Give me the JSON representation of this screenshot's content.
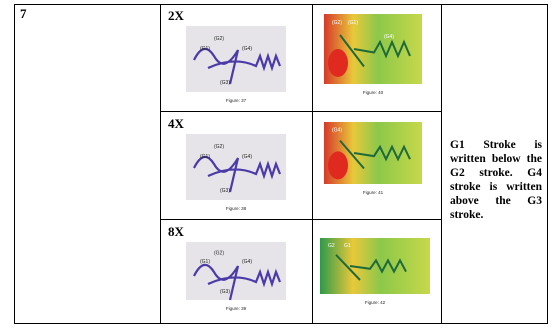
{
  "table": {
    "row_number": "7",
    "rows": [
      {
        "magnification": "2X",
        "sketch": {
          "labels": [
            "(G2)",
            "(G1)",
            "(G4)",
            "(G3)"
          ],
          "caption": "Figure: 37"
        },
        "thermal": {
          "labels": [
            "(G2)",
            "(G1)",
            "(G4)"
          ],
          "caption": "Figure: 40"
        }
      },
      {
        "magnification": "4X",
        "sketch": {
          "labels": [
            "(G2)",
            "(G1)",
            "(G4)",
            "(G3)"
          ],
          "caption": "Figure: 38"
        },
        "thermal": {
          "labels": [
            "(G4)"
          ],
          "caption": "Figure: 41"
        }
      },
      {
        "magnification": "8X",
        "sketch": {
          "labels": [
            "(G2)",
            "(G1)",
            "(G4)",
            "(G3)"
          ],
          "caption": "Figure: 39"
        },
        "thermal": {
          "labels": [
            "G2",
            "G1"
          ],
          "caption": "Figure: 42"
        }
      }
    ],
    "observation": "G1 Stroke is written below the G2 stroke. G4 stroke is written above the G3 stroke."
  }
}
